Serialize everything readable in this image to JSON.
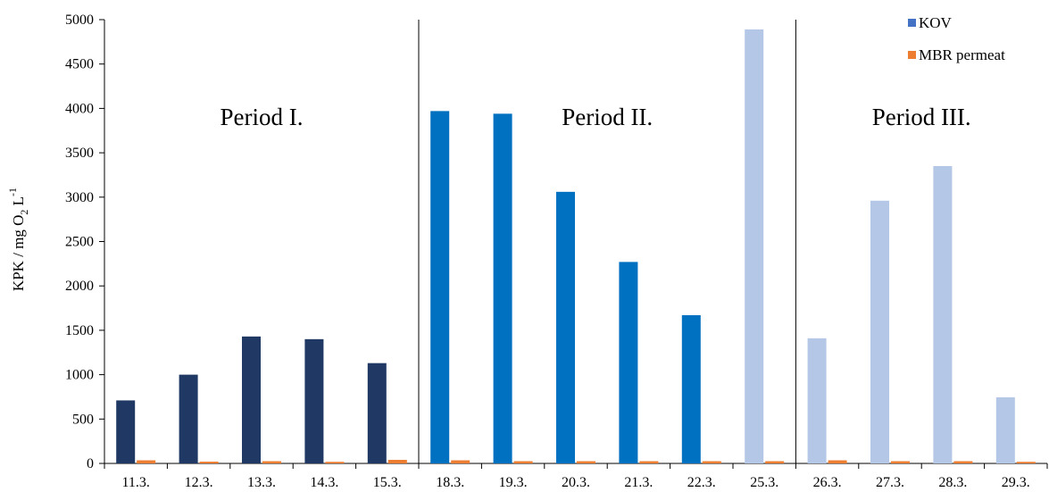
{
  "chart_data": {
    "type": "bar",
    "ylabel": "KPK / mg O",
    "ylabel_sub": "2",
    "ylabel_unit": " L",
    "ylabel_sup": "-1",
    "ylim": [
      0,
      5000
    ],
    "yticks": [
      0,
      500,
      1000,
      1500,
      2000,
      2500,
      3000,
      3500,
      4000,
      4500,
      5000
    ],
    "grid": false,
    "legend_position": "top-right",
    "categories": [
      "11.3.",
      "12.3.",
      "13.3.",
      "14.3.",
      "15.3.",
      "18.3.",
      "19.3.",
      "20.3.",
      "21.3.",
      "22.3.",
      "25.3.",
      "26.3.",
      "27.3.",
      "28.3.",
      "29.3."
    ],
    "series": [
      {
        "name": "KOV",
        "legend_color": "#4472c4",
        "values": [
          710,
          1000,
          1430,
          1400,
          1130,
          3970,
          3940,
          3060,
          2270,
          1670,
          4890,
          1410,
          2960,
          3350,
          745
        ],
        "colors": [
          "#1f3864",
          "#1f3864",
          "#1f3864",
          "#1f3864",
          "#1f3864",
          "#0070c0",
          "#0070c0",
          "#0070c0",
          "#0070c0",
          "#0070c0",
          "#b4c7e7",
          "#b4c7e7",
          "#b4c7e7",
          "#b4c7e7",
          "#b4c7e7"
        ]
      },
      {
        "name": "MBR permeat",
        "legend_color": "#ed7d31",
        "values": [
          35,
          20,
          25,
          18,
          40,
          35,
          25,
          25,
          25,
          25,
          25,
          35,
          25,
          25,
          18
        ],
        "colors": [
          "#ed7d31",
          "#ed7d31",
          "#ed7d31",
          "#ed7d31",
          "#ed7d31",
          "#ed7d31",
          "#ed7d31",
          "#ed7d31",
          "#ed7d31",
          "#ed7d31",
          "#ed7d31",
          "#ed7d31",
          "#ed7d31",
          "#ed7d31",
          "#ed7d31"
        ]
      }
    ],
    "periods": [
      {
        "label": "Period I.",
        "from_index": 0,
        "to_index": 4
      },
      {
        "label": "Period II.",
        "from_index": 5,
        "to_index": 10
      },
      {
        "label": "Period III.",
        "from_index": 11,
        "to_index": 14
      }
    ]
  }
}
